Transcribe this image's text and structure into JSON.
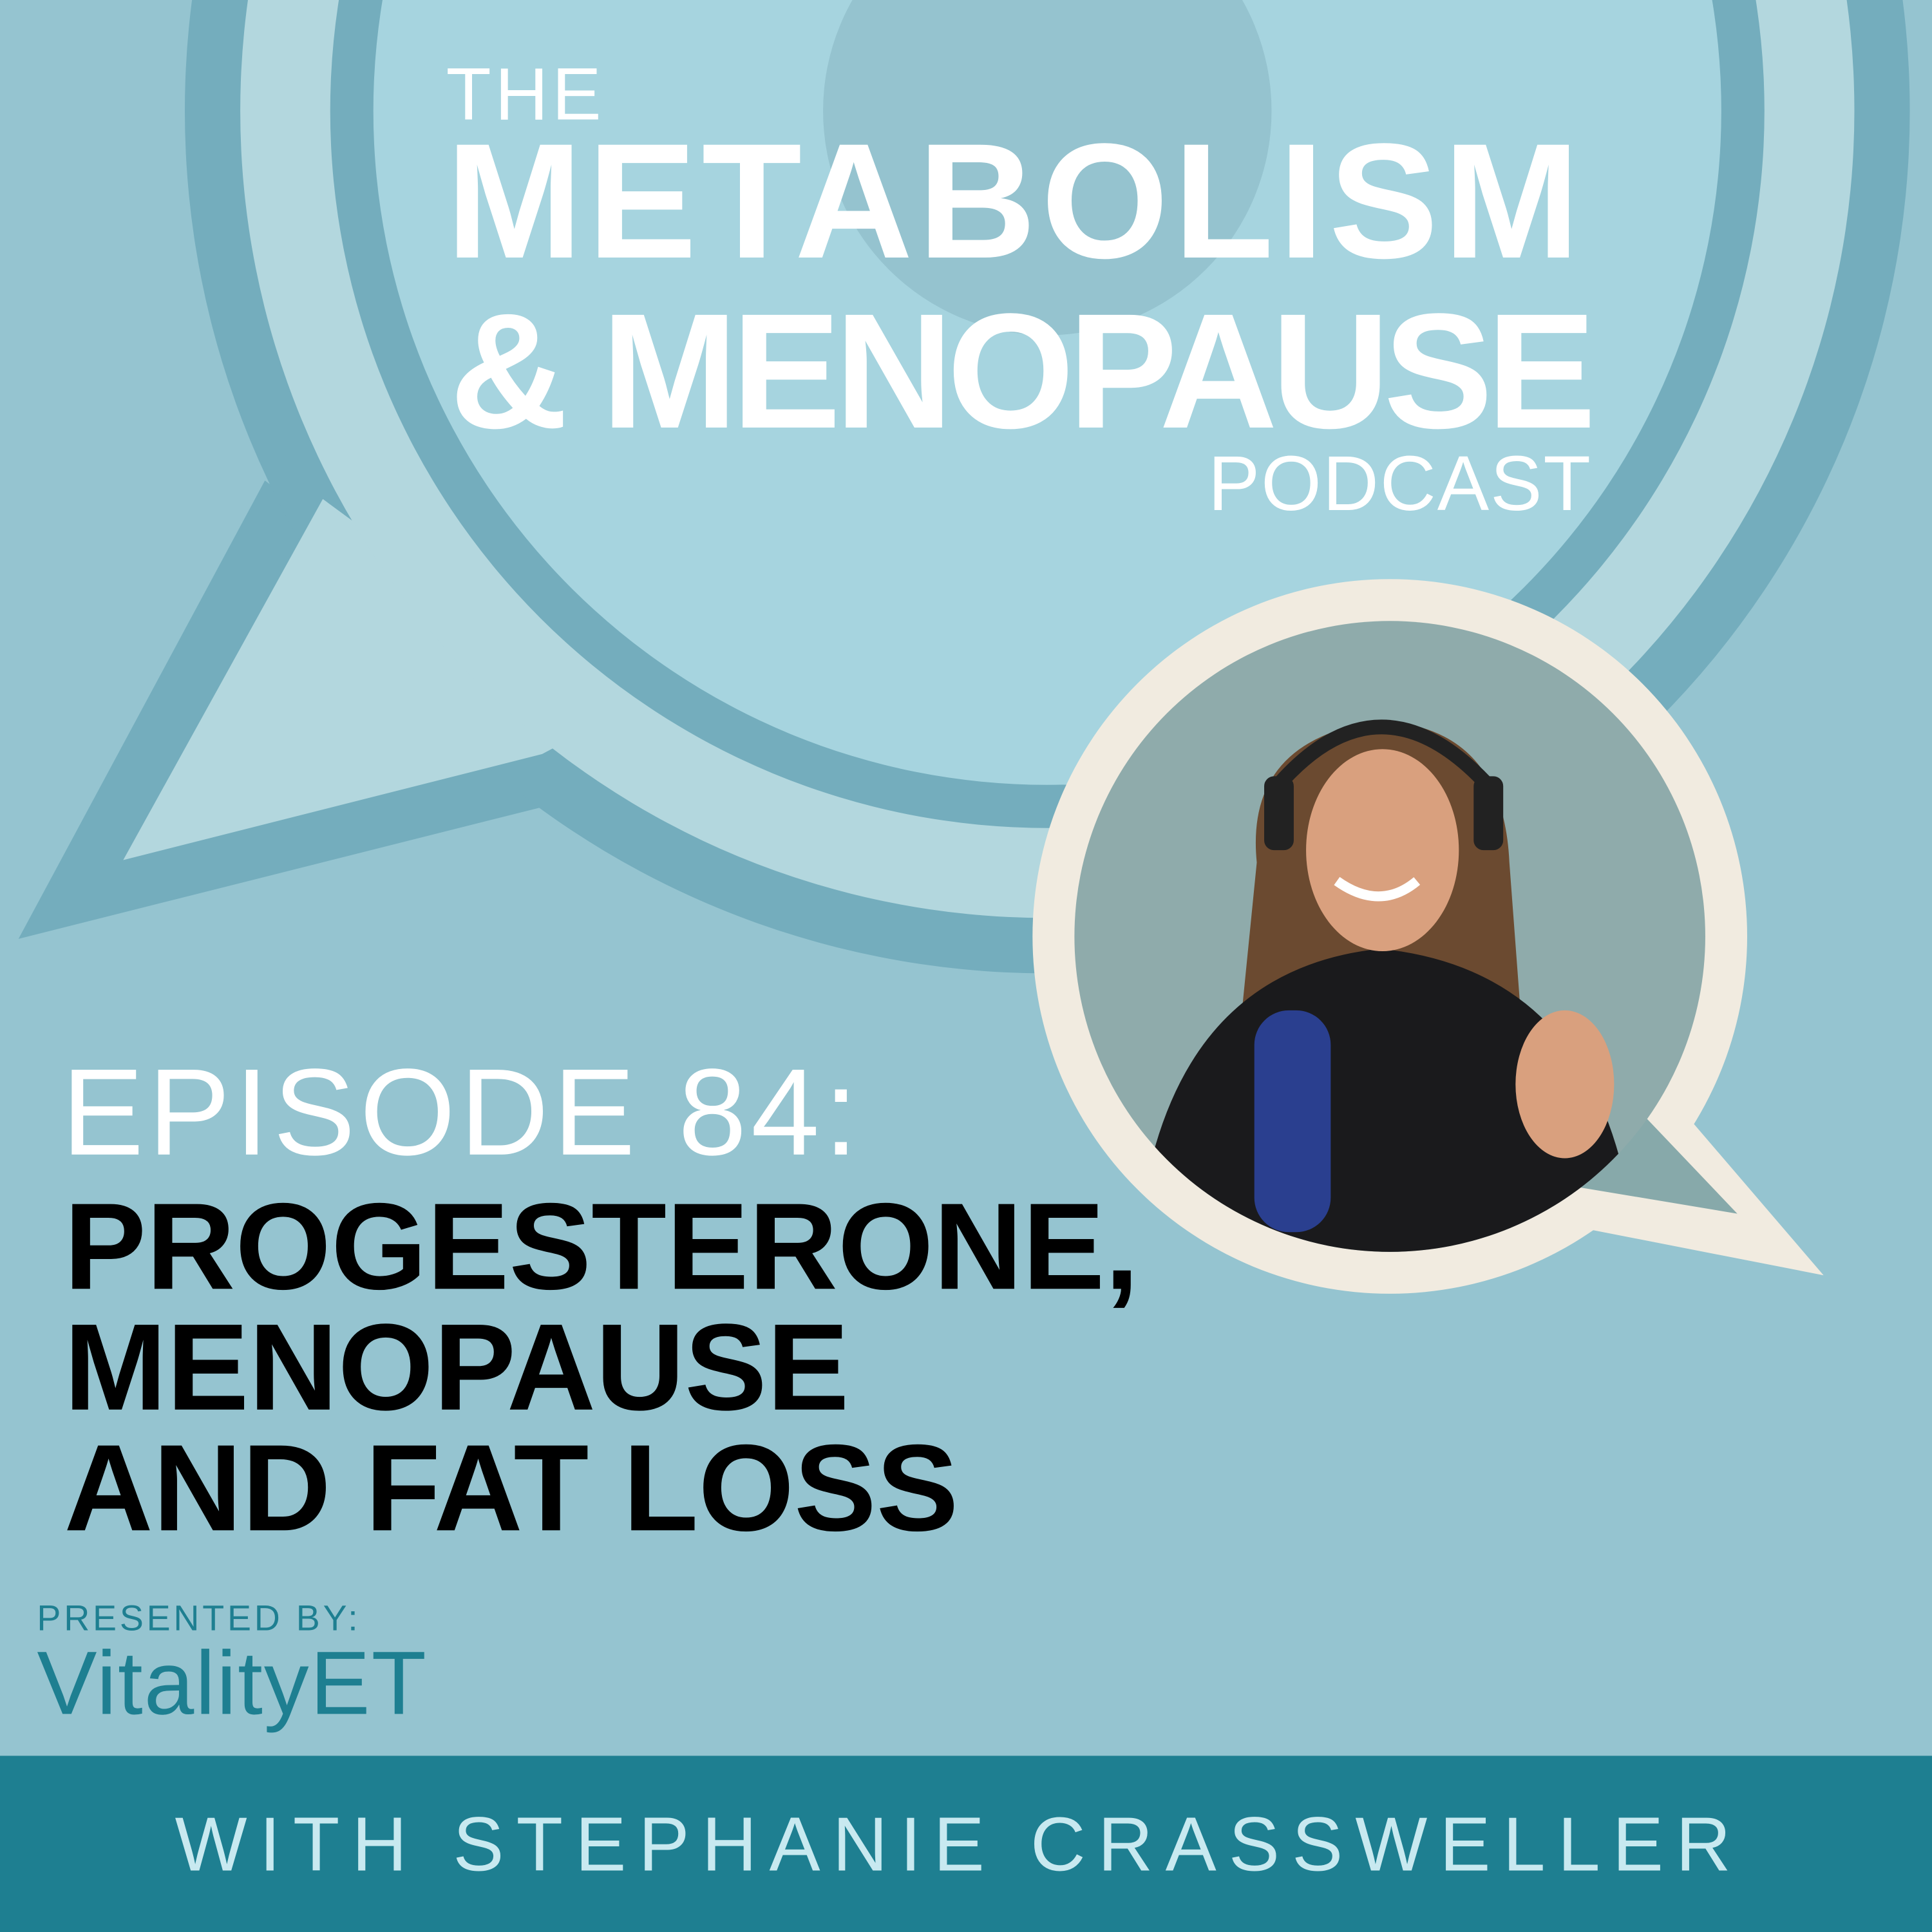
{
  "header": {
    "the": "THE",
    "title_line1": "METABOLISM",
    "title_line2": "& MENOPAUSE",
    "podcast": "PODCAST"
  },
  "episode": {
    "number_label": "EPISODE 84:",
    "title_lines": [
      "PROGESTERONE,",
      "MENOPAUSE",
      "AND FAT LOSS"
    ]
  },
  "sponsor": {
    "presented_by": "PRESENTED BY:",
    "logo_text": "VitalityET"
  },
  "footer": {
    "host": "WITH STEPHANIE CRASSWELLER"
  },
  "colors": {
    "background": "#95c4d0",
    "ring_dark": "#74adbd",
    "ring_light": "#b3d7de",
    "inner_circle": "#a6d4df",
    "footer_bar": "#1e7f91",
    "footer_text": "#c8e9f0",
    "photo_frame": "#f1ebe0",
    "logo": "#1e7f91"
  }
}
